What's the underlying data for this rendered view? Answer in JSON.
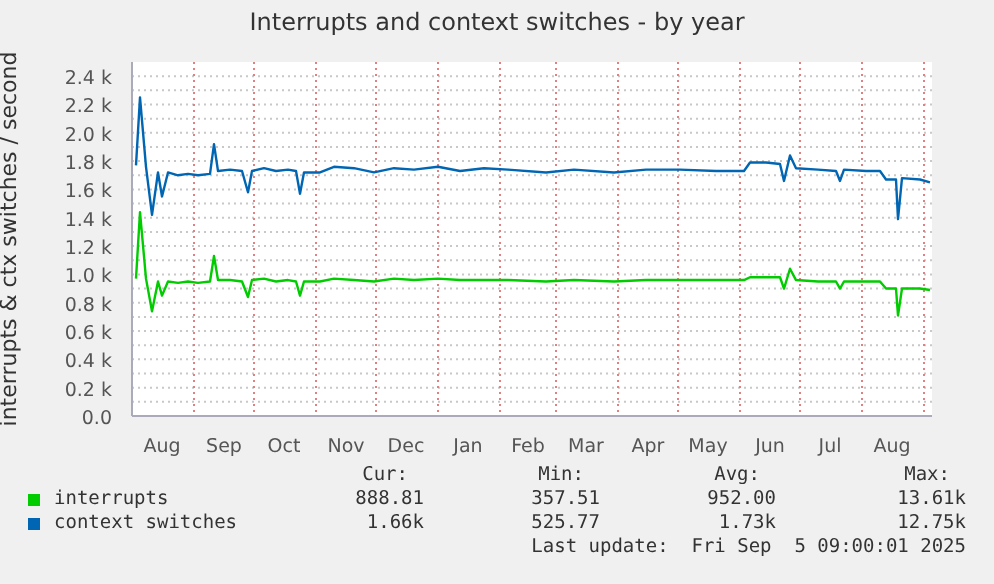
{
  "chart_data": {
    "type": "line",
    "title": "Interrupts and context switches - by year",
    "ylabel": "interrupts & ctx switches / second",
    "x": [
      "2024-08-03",
      "2024-08-05",
      "2024-08-08",
      "2024-08-11",
      "2024-08-14",
      "2024-08-16",
      "2024-08-19",
      "2024-08-24",
      "2024-08-29",
      "2024-09-03",
      "2024-09-09",
      "2024-09-11",
      "2024-09-13",
      "2024-09-19",
      "2024-09-25",
      "2024-09-28",
      "2024-09-30",
      "2024-10-06",
      "2024-10-12",
      "2024-10-18",
      "2024-10-22",
      "2024-10-24",
      "2024-10-26",
      "2024-11-03",
      "2024-11-10",
      "2024-11-20",
      "2024-11-30",
      "2024-12-10",
      "2024-12-20",
      "2025-01-01",
      "2025-01-12",
      "2025-01-24",
      "2025-02-05",
      "2025-02-24",
      "2025-03-10",
      "2025-03-30",
      "2025-04-15",
      "2025-05-02",
      "2025-05-20",
      "2025-06-03",
      "2025-06-06",
      "2025-06-14",
      "2025-06-21",
      "2025-06-23",
      "2025-06-26",
      "2025-06-29",
      "2025-07-10",
      "2025-07-19",
      "2025-07-21",
      "2025-07-23",
      "2025-08-03",
      "2025-08-10",
      "2025-08-13",
      "2025-08-18",
      "2025-08-19",
      "2025-08-21",
      "2025-08-30",
      "2025-09-04"
    ],
    "series": [
      {
        "name": "interrupts",
        "color": "#00cc00",
        "values": [
          970,
          1440,
          970,
          740,
          950,
          850,
          950,
          940,
          950,
          940,
          950,
          1130,
          960,
          960,
          950,
          840,
          960,
          970,
          950,
          960,
          950,
          850,
          950,
          950,
          970,
          960,
          950,
          970,
          960,
          970,
          960,
          960,
          960,
          950,
          960,
          950,
          960,
          960,
          960,
          960,
          980,
          980,
          980,
          900,
          1040,
          960,
          950,
          950,
          900,
          950,
          950,
          950,
          900,
          900,
          710,
          900,
          900,
          890
        ]
      },
      {
        "name": "context switches",
        "color": "#0066b3",
        "values": [
          1770,
          2250,
          1760,
          1420,
          1720,
          1550,
          1720,
          1700,
          1710,
          1700,
          1710,
          1920,
          1730,
          1740,
          1730,
          1580,
          1730,
          1750,
          1730,
          1740,
          1730,
          1570,
          1720,
          1720,
          1760,
          1750,
          1720,
          1750,
          1740,
          1760,
          1730,
          1750,
          1740,
          1720,
          1740,
          1720,
          1740,
          1740,
          1730,
          1730,
          1790,
          1790,
          1780,
          1660,
          1840,
          1750,
          1740,
          1730,
          1660,
          1740,
          1730,
          1730,
          1670,
          1670,
          1390,
          1680,
          1670,
          1650
        ]
      }
    ],
    "xlim": [
      "2024-08-01",
      "2025-09-05"
    ],
    "xticks": [
      {
        "value": "2024-08-16",
        "label": "Aug"
      },
      {
        "value": "2024-09-01",
        "label": null
      },
      {
        "value": "2024-09-16",
        "label": "Sep"
      },
      {
        "value": "2024-10-01",
        "label": null
      },
      {
        "value": "2024-10-16",
        "label": "Oct"
      },
      {
        "value": "2024-11-01",
        "label": null
      },
      {
        "value": "2024-11-16",
        "label": "Nov"
      },
      {
        "value": "2024-12-01",
        "label": null
      },
      {
        "value": "2024-12-16",
        "label": "Dec"
      },
      {
        "value": "2025-01-01",
        "label": null
      },
      {
        "value": "2025-01-16",
        "label": "Jan"
      },
      {
        "value": "2025-02-01",
        "label": null
      },
      {
        "value": "2025-02-15",
        "label": "Feb"
      },
      {
        "value": "2025-03-01",
        "label": null
      },
      {
        "value": "2025-03-16",
        "label": "Mar"
      },
      {
        "value": "2025-04-01",
        "label": null
      },
      {
        "value": "2025-04-16",
        "label": "Apr"
      },
      {
        "value": "2025-05-01",
        "label": null
      },
      {
        "value": "2025-05-16",
        "label": "May"
      },
      {
        "value": "2025-06-01",
        "label": null
      },
      {
        "value": "2025-06-16",
        "label": "Jun"
      },
      {
        "value": "2025-07-01",
        "label": null
      },
      {
        "value": "2025-07-16",
        "label": "Jul"
      },
      {
        "value": "2025-08-01",
        "label": null
      },
      {
        "value": "2025-08-16",
        "label": "Aug"
      },
      {
        "value": "2025-09-01",
        "label": null
      }
    ],
    "ylim": [
      0,
      2500
    ],
    "yticks": [
      {
        "value": 0,
        "label": "0.0"
      },
      {
        "value": 100,
        "label": null
      },
      {
        "value": 200,
        "label": "0.2 k"
      },
      {
        "value": 300,
        "label": null
      },
      {
        "value": 400,
        "label": "0.4 k"
      },
      {
        "value": 500,
        "label": null
      },
      {
        "value": 600,
        "label": "0.6 k"
      },
      {
        "value": 700,
        "label": null
      },
      {
        "value": 800,
        "label": "0.8 k"
      },
      {
        "value": 900,
        "label": null
      },
      {
        "value": 1000,
        "label": "1.0 k"
      },
      {
        "value": 1100,
        "label": null
      },
      {
        "value": 1200,
        "label": "1.2 k"
      },
      {
        "value": 1300,
        "label": null
      },
      {
        "value": 1400,
        "label": "1.4 k"
      },
      {
        "value": 1500,
        "label": null
      },
      {
        "value": 1600,
        "label": "1.6 k"
      },
      {
        "value": 1700,
        "label": null
      },
      {
        "value": 1800,
        "label": "1.8 k"
      },
      {
        "value": 1900,
        "label": null
      },
      {
        "value": 2000,
        "label": "2.0 k"
      },
      {
        "value": 2100,
        "label": null
      },
      {
        "value": 2200,
        "label": "2.2 k"
      },
      {
        "value": 2300,
        "label": null
      },
      {
        "value": 2400,
        "label": "2.4 k"
      }
    ],
    "grid": true,
    "legend": "bottom",
    "marker": "none",
    "line_style": "solid",
    "annotations": [
      "Cur:",
      "Min:",
      "Avg:",
      "Max:",
      "888.81",
      "357.51",
      "952.00",
      "13.61k",
      "1.66k",
      "525.77",
      "1.73k",
      "12.75k",
      "Last update:  Fri Sep  5 09:00:01 2025"
    ]
  }
}
